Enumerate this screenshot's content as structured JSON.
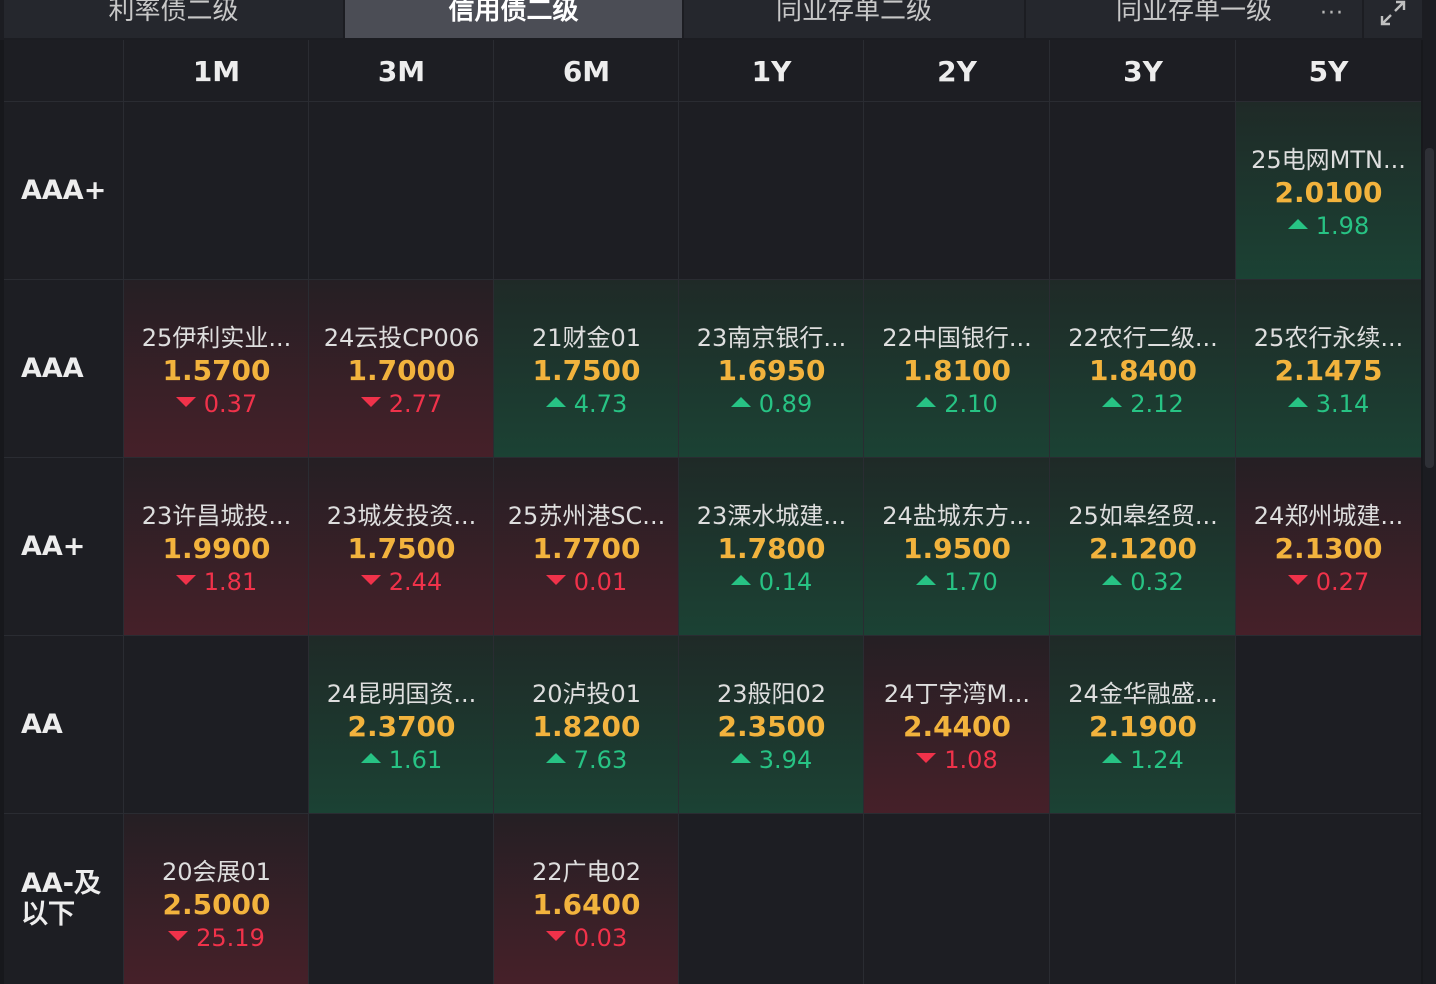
{
  "tabs": [
    {
      "label": "利率债二级",
      "active": false
    },
    {
      "label": "信用债二级",
      "active": true
    },
    {
      "label": "同业存单二级",
      "active": false
    },
    {
      "label": "同业存单一级",
      "active": false
    }
  ],
  "toolbar": {
    "more_icon": "more-horizontal-icon",
    "more_glyph": "···",
    "expand_icon": "expand-icon"
  },
  "columns": [
    "1M",
    "3M",
    "6M",
    "1Y",
    "2Y",
    "3Y",
    "5Y"
  ],
  "rows": [
    {
      "rating": "AAA+",
      "cells": [
        null,
        null,
        null,
        null,
        null,
        null,
        {
          "name": "25电网MTN...",
          "yield": "2.0100",
          "change": "1.98",
          "direction": "up"
        }
      ]
    },
    {
      "rating": "AAA",
      "cells": [
        {
          "name": "25伊利实业...",
          "yield": "1.5700",
          "change": "0.37",
          "direction": "down"
        },
        {
          "name": "24云投CP006",
          "yield": "1.7000",
          "change": "2.77",
          "direction": "down"
        },
        {
          "name": "21财金01",
          "yield": "1.7500",
          "change": "4.73",
          "direction": "up"
        },
        {
          "name": "23南京银行...",
          "yield": "1.6950",
          "change": "0.89",
          "direction": "up"
        },
        {
          "name": "22中国银行...",
          "yield": "1.8100",
          "change": "2.10",
          "direction": "up"
        },
        {
          "name": "22农行二级...",
          "yield": "1.8400",
          "change": "2.12",
          "direction": "up"
        },
        {
          "name": "25农行永续...",
          "yield": "2.1475",
          "change": "3.14",
          "direction": "up"
        }
      ]
    },
    {
      "rating": "AA+",
      "cells": [
        {
          "name": "23许昌城投...",
          "yield": "1.9900",
          "change": "1.81",
          "direction": "down"
        },
        {
          "name": "23城发投资...",
          "yield": "1.7500",
          "change": "2.44",
          "direction": "down"
        },
        {
          "name": "25苏州港SC...",
          "yield": "1.7700",
          "change": "0.01",
          "direction": "down"
        },
        {
          "name": "23溧水城建...",
          "yield": "1.7800",
          "change": "0.14",
          "direction": "up"
        },
        {
          "name": "24盐城东方...",
          "yield": "1.9500",
          "change": "1.70",
          "direction": "up"
        },
        {
          "name": "25如皋经贸...",
          "yield": "2.1200",
          "change": "0.32",
          "direction": "up"
        },
        {
          "name": "24郑州城建...",
          "yield": "2.1300",
          "change": "0.27",
          "direction": "down"
        }
      ]
    },
    {
      "rating": "AA",
      "cells": [
        null,
        {
          "name": "24昆明国资...",
          "yield": "2.3700",
          "change": "1.61",
          "direction": "up"
        },
        {
          "name": "20泸投01",
          "yield": "1.8200",
          "change": "7.63",
          "direction": "up"
        },
        {
          "name": "23般阳02",
          "yield": "2.3500",
          "change": "3.94",
          "direction": "up"
        },
        {
          "name": "24丁字湾M...",
          "yield": "2.4400",
          "change": "1.08",
          "direction": "down"
        },
        {
          "name": "24金华融盛...",
          "yield": "2.1900",
          "change": "1.24",
          "direction": "up"
        },
        null
      ]
    },
    {
      "rating": "AA-及以下",
      "rating_lines": [
        "AA-及",
        "以下"
      ],
      "cells": [
        {
          "name": "20会展01",
          "yield": "2.5000",
          "change": "25.19",
          "direction": "down"
        },
        null,
        {
          "name": "22广电02",
          "yield": "1.6400",
          "change": "0.03",
          "direction": "down"
        },
        null,
        null,
        null,
        null
      ]
    }
  ],
  "colors": {
    "up": "#27c384",
    "down": "#f0324a",
    "yield": "#f2b33d"
  }
}
